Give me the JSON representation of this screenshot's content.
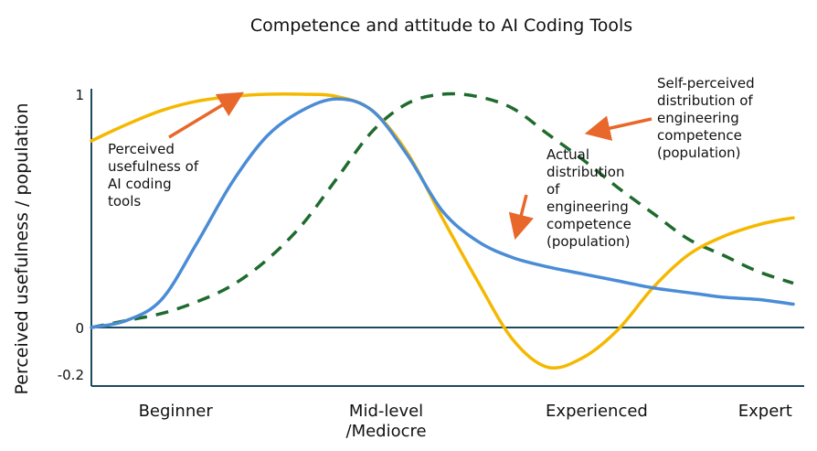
{
  "chart_data": {
    "type": "line",
    "title": "Competence and attitude to AI Coding Tools",
    "ylabel": "Perceived usefulness / population",
    "xlabel": "",
    "ylim": [
      -0.2,
      1
    ],
    "xlim": [
      0,
      100
    ],
    "y_ticks": [
      {
        "label": "1",
        "value": 1
      },
      {
        "label": "0",
        "value": 0
      },
      {
        "label": "-0.2",
        "value": -0.2
      }
    ],
    "x_ticks": [
      {
        "label": "Beginner",
        "value": 12
      },
      {
        "label": "Mid-level",
        "label2": "/Mediocre",
        "value": 42
      },
      {
        "label": "Experienced",
        "value": 72
      },
      {
        "label": "Expert",
        "value": 96
      }
    ],
    "grid": false,
    "series": [
      {
        "name": "Perceived usefulness of AI coding tools",
        "color": "#F5B800",
        "style": "solid",
        "x": [
          0,
          5,
          10,
          15,
          20,
          25,
          30,
          35,
          40,
          45,
          50,
          55,
          60,
          65,
          70,
          75,
          80,
          85,
          90,
          95,
          98,
          100
        ],
        "y": [
          0.8,
          0.87,
          0.93,
          0.97,
          0.99,
          1.0,
          1.0,
          0.99,
          0.93,
          0.75,
          0.47,
          0.2,
          -0.05,
          -0.17,
          -0.13,
          -0.01,
          0.17,
          0.31,
          0.39,
          0.44,
          0.46,
          0.47
        ]
      },
      {
        "name": "Actual distribution of engineering competence (population)",
        "color": "#4A8CD6",
        "style": "solid",
        "x": [
          0,
          5,
          10,
          15,
          20,
          25,
          30,
          35,
          40,
          45,
          50,
          55,
          60,
          65,
          70,
          75,
          80,
          85,
          90,
          95,
          100
        ],
        "y": [
          0.0,
          0.03,
          0.12,
          0.36,
          0.62,
          0.82,
          0.93,
          0.98,
          0.93,
          0.74,
          0.5,
          0.37,
          0.3,
          0.26,
          0.23,
          0.2,
          0.17,
          0.15,
          0.13,
          0.12,
          0.1
        ]
      },
      {
        "name": "Self-perceived distribution of engineering competence (population)",
        "color": "#1F6B2E",
        "style": "dashed",
        "x": [
          0,
          5,
          10,
          15,
          20,
          25,
          30,
          35,
          40,
          45,
          50,
          55,
          60,
          65,
          70,
          75,
          80,
          85,
          90,
          95,
          100
        ],
        "y": [
          0.0,
          0.03,
          0.06,
          0.11,
          0.18,
          0.29,
          0.44,
          0.64,
          0.84,
          0.96,
          1.0,
          0.99,
          0.94,
          0.83,
          0.72,
          0.6,
          0.49,
          0.38,
          0.31,
          0.24,
          0.19
        ]
      }
    ],
    "annotations": [
      {
        "series": 0,
        "lines": [
          "Perceived",
          "usefulness of",
          "AI coding",
          "tools"
        ]
      },
      {
        "series": 1,
        "lines": [
          "Actual",
          "distribution",
          "of",
          "engineering",
          "competence",
          "(population)"
        ]
      },
      {
        "series": 2,
        "lines": [
          "Self-perceived",
          "distribution of",
          "engineering",
          "competence",
          "(population)"
        ]
      }
    ],
    "arrow_color": "#E8672A"
  }
}
